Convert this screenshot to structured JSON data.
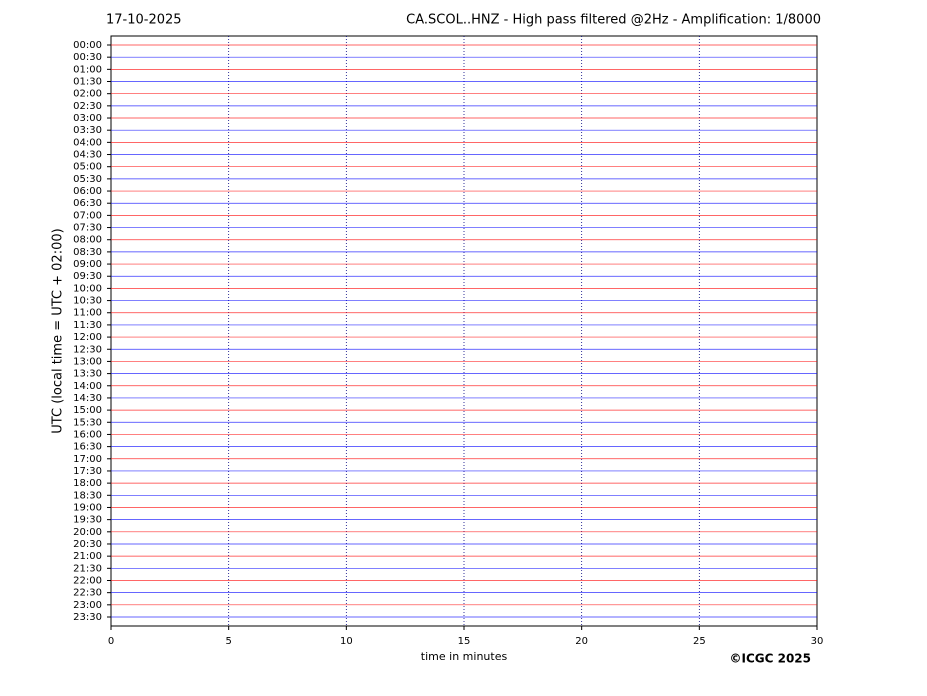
{
  "chart_data": {
    "type": "helicorder",
    "date": "17-10-2025",
    "title": "CA.SCOL..HNZ - High pass filtered @2Hz - Amplification: 1/8000",
    "ylabel": "UTC (local time = UTC + 02:00)",
    "xlabel": "time in minutes",
    "credit": "©ICGC 2025",
    "categories": [
      "00:00",
      "00:30",
      "01:00",
      "01:30",
      "02:00",
      "02:30",
      "03:00",
      "03:30",
      "04:00",
      "04:30",
      "05:00",
      "05:30",
      "06:00",
      "06:30",
      "07:00",
      "07:30",
      "08:00",
      "08:30",
      "09:00",
      "09:30",
      "10:00",
      "10:30",
      "11:00",
      "11:30",
      "12:00",
      "12:30",
      "13:00",
      "13:30",
      "14:00",
      "14:30",
      "15:00",
      "15:30",
      "16:00",
      "16:30",
      "17:00",
      "17:30",
      "18:00",
      "18:30",
      "19:00",
      "19:30",
      "20:00",
      "20:30",
      "21:00",
      "21:30",
      "22:00",
      "22:30",
      "23:00",
      "23:30"
    ],
    "colors": [
      "#ff0000",
      "#0000ff"
    ],
    "xlim": [
      0,
      30
    ],
    "xticks": [
      0,
      5,
      10,
      15,
      20,
      25,
      30
    ],
    "grid": true
  }
}
